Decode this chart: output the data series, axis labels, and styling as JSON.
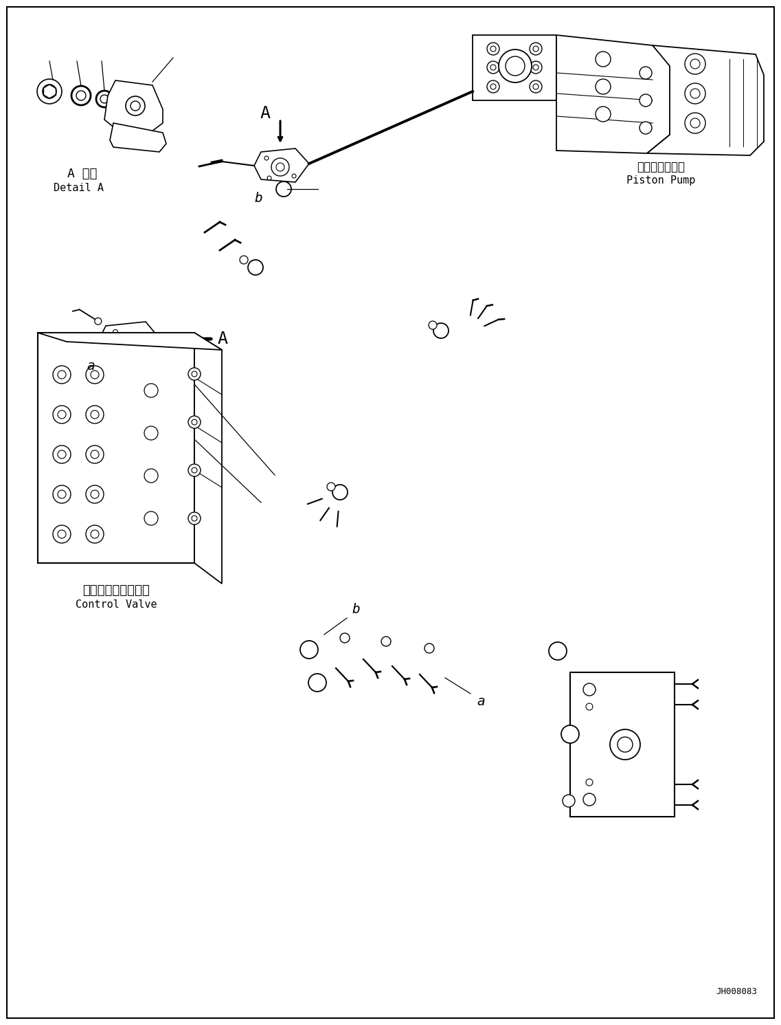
{
  "title": "",
  "background_color": "#ffffff",
  "border_color": "#000000",
  "line_color": "#000000",
  "text_color": "#000000",
  "label_detail_a_jp": "A 詳細",
  "label_detail_a_en": "Detail A",
  "label_piston_pump_jp": "ピストンポンプ",
  "label_piston_pump_en": "Piston Pump",
  "label_control_valve_jp": "コントロールバルブ",
  "label_control_valve_en": "Control Valve",
  "label_code": "JH008083",
  "label_A_top": "A",
  "label_A_mid": "A",
  "label_a_left": "a",
  "label_b_top": "b",
  "label_b_bot": "b",
  "label_a_bot": "a"
}
